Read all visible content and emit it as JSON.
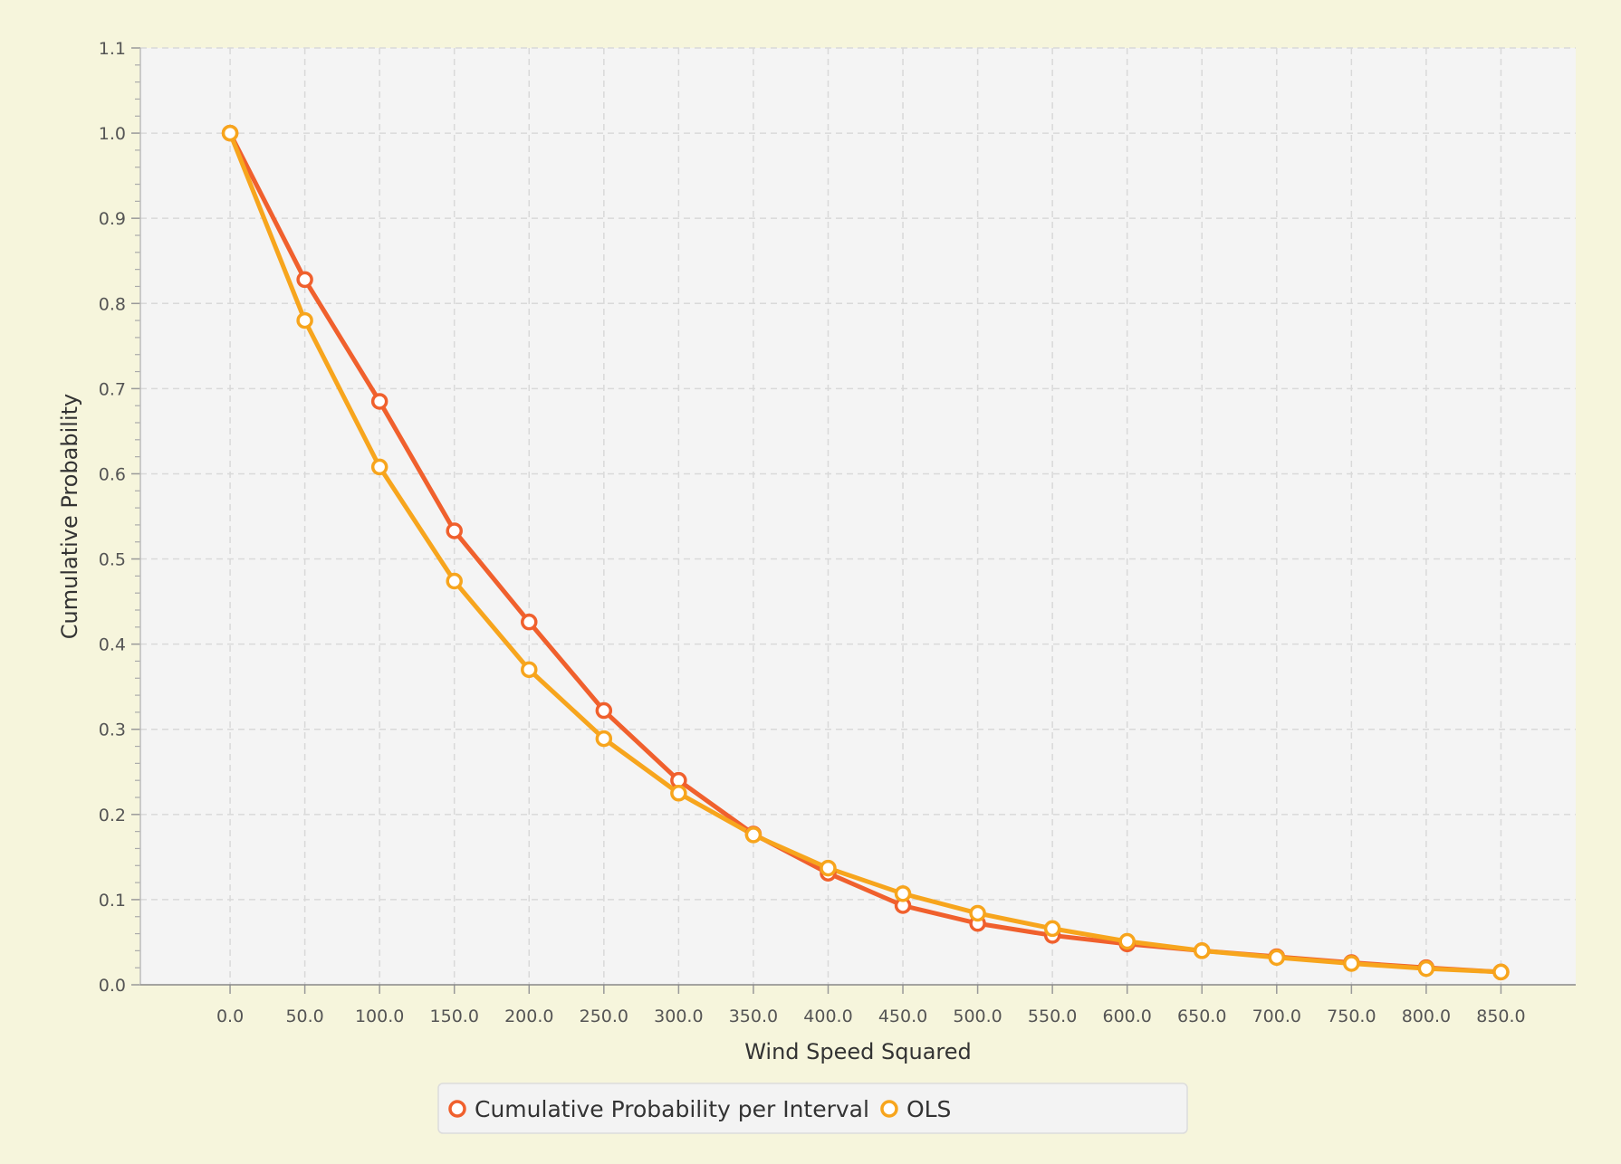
{
  "chart_data": {
    "type": "line",
    "title": "",
    "xlabel": "Wind Speed Squared",
    "ylabel": "Cumulative Probability",
    "xlim": [
      -60,
      900
    ],
    "ylim": [
      0.0,
      1.1
    ],
    "x_ticks": [
      "0.0",
      "50.0",
      "100.0",
      "150.0",
      "200.0",
      "250.0",
      "300.0",
      "350.0",
      "400.0",
      "450.0",
      "500.0",
      "550.0",
      "600.0",
      "650.0",
      "700.0",
      "750.0",
      "800.0",
      "850.0"
    ],
    "y_ticks": [
      "0.0",
      "0.1",
      "0.2",
      "0.3",
      "0.4",
      "0.5",
      "0.6",
      "0.7",
      "0.8",
      "0.9",
      "1.0",
      "1.1"
    ],
    "grid": true,
    "legend_position": "bottom",
    "x": [
      0,
      50,
      100,
      150,
      200,
      250,
      300,
      350,
      400,
      450,
      500,
      550,
      600,
      650,
      700,
      750,
      800,
      850
    ],
    "series": [
      {
        "name": "Cumulative Probability per Interval",
        "color": "#f0602d",
        "values": [
          1.0,
          0.828,
          0.685,
          0.533,
          0.426,
          0.322,
          0.24,
          0.177,
          0.131,
          0.093,
          0.072,
          0.058,
          0.048,
          0.04,
          0.033,
          0.026,
          0.02,
          0.015
        ]
      },
      {
        "name": "OLS",
        "color": "#f7a51d",
        "values": [
          1.0,
          0.78,
          0.608,
          0.474,
          0.37,
          0.289,
          0.225,
          0.176,
          0.137,
          0.107,
          0.084,
          0.066,
          0.051,
          0.04,
          0.032,
          0.025,
          0.019,
          0.015
        ]
      }
    ]
  }
}
